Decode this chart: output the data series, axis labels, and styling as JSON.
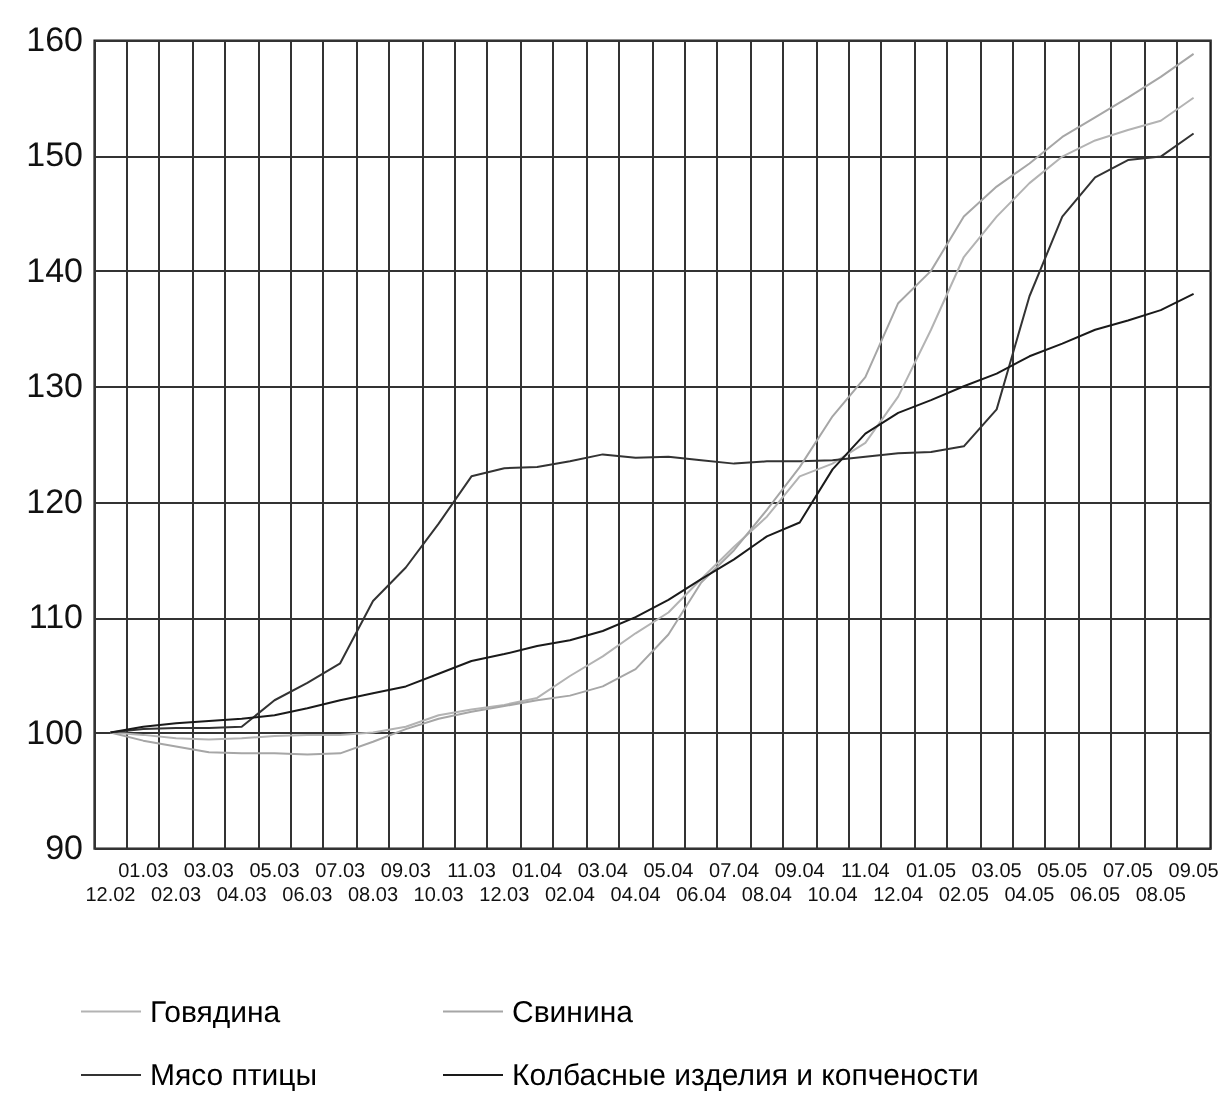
{
  "chart_data": {
    "type": "line",
    "categories": [
      "12.02",
      "01.03",
      "02.03",
      "03.03",
      "04.03",
      "05.03",
      "06.03",
      "07.03",
      "08.03",
      "09.03",
      "10.03",
      "11.03",
      "12.03",
      "01.04",
      "02.04",
      "03.04",
      "04.04",
      "05.04",
      "06.04",
      "07.04",
      "08.04",
      "09.04",
      "10.04",
      "11.04",
      "12.04",
      "01.05",
      "02.05",
      "03.05",
      "04.05",
      "05.05",
      "06.05",
      "07.05",
      "08.05",
      "09.05"
    ],
    "series": [
      {
        "name": "Говядина",
        "color": "#b3b3b3",
        "values": [
          100,
          99.8,
          99.5,
          99.4,
          99.5,
          99.7,
          99.8,
          99.8,
          100,
          100.5,
          101.5,
          102,
          102.4,
          103,
          104.9,
          106.6,
          108.6,
          110.4,
          113.3,
          116.1,
          118.7,
          122.2,
          123.3,
          125.1,
          129.1,
          134.9,
          141.2,
          144.7,
          147.6,
          149.9,
          151.3,
          152.2,
          153,
          155
        ]
      },
      {
        "name": "Мясо птицы",
        "color": "#333333",
        "values": [
          100,
          100.3,
          100.4,
          100.4,
          100.5,
          102.8,
          104.3,
          106,
          111.4,
          114.3,
          118.1,
          122.2,
          122.9,
          123,
          123.5,
          124.1,
          123.8,
          123.9,
          123.6,
          123.3,
          123.5,
          123.5,
          123.6,
          123.9,
          124.2,
          124.3,
          124.8,
          128,
          137.8,
          144.7,
          148.1,
          149.6,
          149.9,
          151.9
        ]
      },
      {
        "name": "Свинина",
        "color": "#a6a6a6",
        "values": [
          100,
          99.3,
          98.8,
          98.3,
          98.2,
          98.2,
          98.1,
          98.2,
          99.2,
          100.3,
          101.2,
          101.8,
          102.3,
          102.8,
          103.2,
          104,
          105.5,
          108.5,
          113,
          115.8,
          119.3,
          123,
          127.4,
          130.8,
          137.2,
          140,
          144.7,
          147.3,
          149.3,
          151.6,
          153.3,
          155,
          156.8,
          158.8
        ]
      },
      {
        "name": "Колбасные изделия и копчености",
        "color": "#1a1a1a",
        "values": [
          100,
          100.5,
          100.8,
          101,
          101.2,
          101.5,
          102.1,
          102.8,
          103.4,
          104,
          105.1,
          106.2,
          106.8,
          107.5,
          108,
          108.8,
          110,
          111.5,
          113.3,
          115,
          117,
          118.2,
          122.8,
          125.9,
          127.7,
          128.8,
          130,
          131.1,
          132.6,
          133.7,
          134.9,
          135.7,
          136.6,
          138
        ]
      }
    ],
    "ylim": [
      90,
      160
    ],
    "yticks": [
      90,
      100,
      110,
      120,
      130,
      140,
      150,
      160
    ],
    "grid": true,
    "legend": "bottom"
  }
}
